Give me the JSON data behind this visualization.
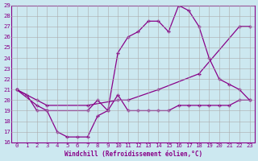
{
  "xlabel": "Windchill (Refroidissement éolien,°C)",
  "bg_color": "#cce8f0",
  "line_color": "#880088",
  "xlim": [
    -0.5,
    23.5
  ],
  "ylim": [
    16,
    29
  ],
  "yticks": [
    16,
    17,
    18,
    19,
    20,
    21,
    22,
    23,
    24,
    25,
    26,
    27,
    28,
    29
  ],
  "xticks": [
    0,
    1,
    2,
    3,
    4,
    5,
    6,
    7,
    8,
    9,
    10,
    11,
    12,
    13,
    14,
    15,
    16,
    17,
    18,
    19,
    20,
    21,
    22,
    23
  ],
  "line1_x": [
    0,
    2,
    3,
    7,
    10,
    11,
    14,
    18,
    22,
    23
  ],
  "line1_y": [
    21,
    20,
    19.5,
    19.5,
    20,
    20,
    21,
    22.5,
    27,
    27
  ],
  "line2_x": [
    0,
    1,
    2,
    3,
    4,
    5,
    6,
    7,
    8,
    9,
    10,
    11,
    12,
    13,
    14,
    15,
    16,
    17,
    18,
    19,
    20,
    21,
    22,
    23
  ],
  "line2_y": [
    21,
    20.5,
    19,
    19,
    17,
    16.5,
    16.5,
    16.5,
    18.5,
    19,
    20.5,
    19,
    19,
    19,
    19,
    19,
    19.5,
    19.5,
    19.5,
    19.5,
    19.5,
    19.5,
    20,
    20
  ],
  "line3_x": [
    0,
    2,
    3,
    7,
    8,
    9,
    10,
    11,
    12,
    13,
    14,
    15,
    16,
    17,
    18,
    19,
    20,
    21,
    22,
    23
  ],
  "line3_y": [
    21,
    19.5,
    19,
    19,
    20,
    19,
    24.5,
    26,
    26.5,
    27.5,
    27.5,
    26.5,
    29,
    28.5,
    27,
    24,
    22,
    21.5,
    21,
    20
  ]
}
